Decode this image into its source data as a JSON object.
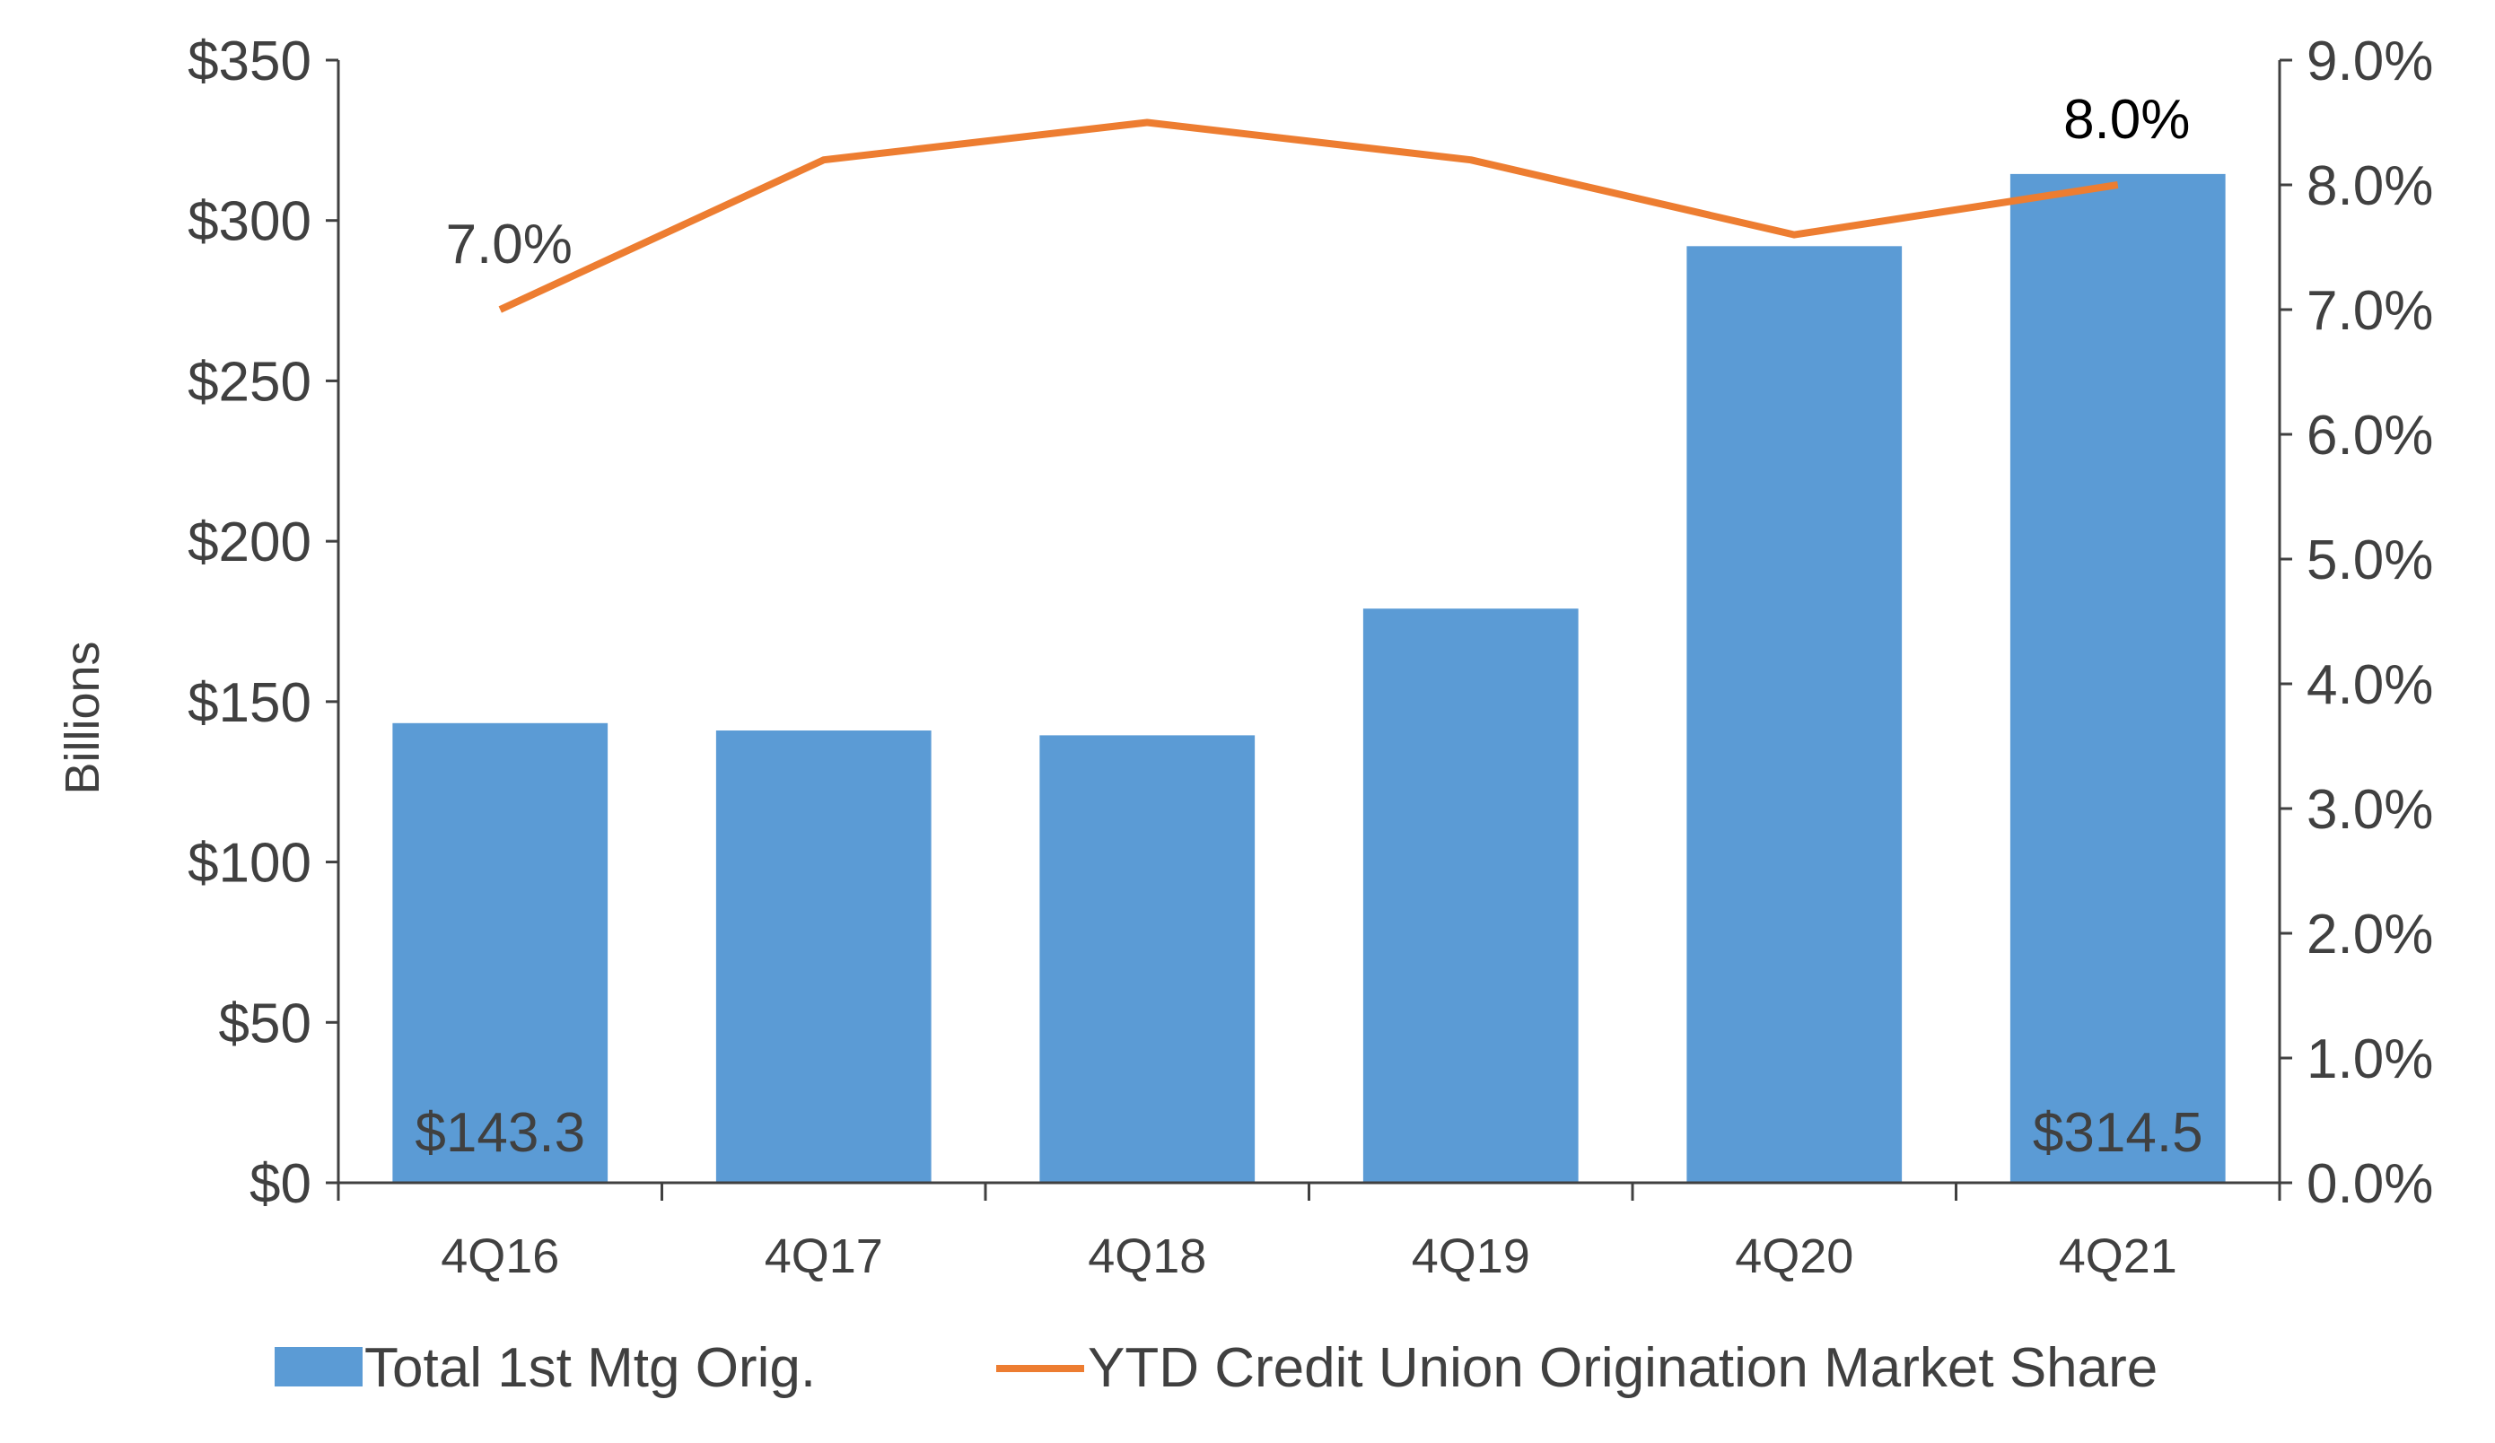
{
  "chart_data": {
    "type": "bar",
    "categories": [
      "4Q16",
      "4Q17",
      "4Q18",
      "4Q19",
      "4Q20",
      "4Q21"
    ],
    "series": [
      {
        "name": "Total 1st Mtg Orig.",
        "type": "bar",
        "axis": "left",
        "color": "#5B9BD5",
        "values": [
          143.3,
          141,
          139.5,
          179,
          292,
          314.5
        ]
      },
      {
        "name": "YTD Credit Union Origination Market Share",
        "type": "line",
        "axis": "right",
        "color": "#ED7D31",
        "values": [
          7.0,
          8.2,
          8.5,
          8.2,
          7.6,
          8.0
        ]
      }
    ],
    "ylabel": "Billions",
    "ylim": [
      0,
      350
    ],
    "y2lim": [
      0,
      9
    ],
    "yticks": [
      "$0",
      "$50",
      "$100",
      "$150",
      "$200",
      "$250",
      "$300",
      "$350"
    ],
    "y2ticks": [
      "0.0%",
      "1.0%",
      "2.0%",
      "3.0%",
      "4.0%",
      "5.0%",
      "6.0%",
      "7.0%",
      "8.0%",
      "9.0%"
    ],
    "data_labels": {
      "bars": [
        {
          "index": 0,
          "text": "$143.3"
        },
        {
          "index": 5,
          "text": "$314.5"
        }
      ],
      "line": [
        {
          "index": 0,
          "text": "7.0%"
        },
        {
          "index": 5,
          "text": "8.0%"
        }
      ]
    },
    "legend": {
      "position": "bottom"
    },
    "grid": false
  }
}
